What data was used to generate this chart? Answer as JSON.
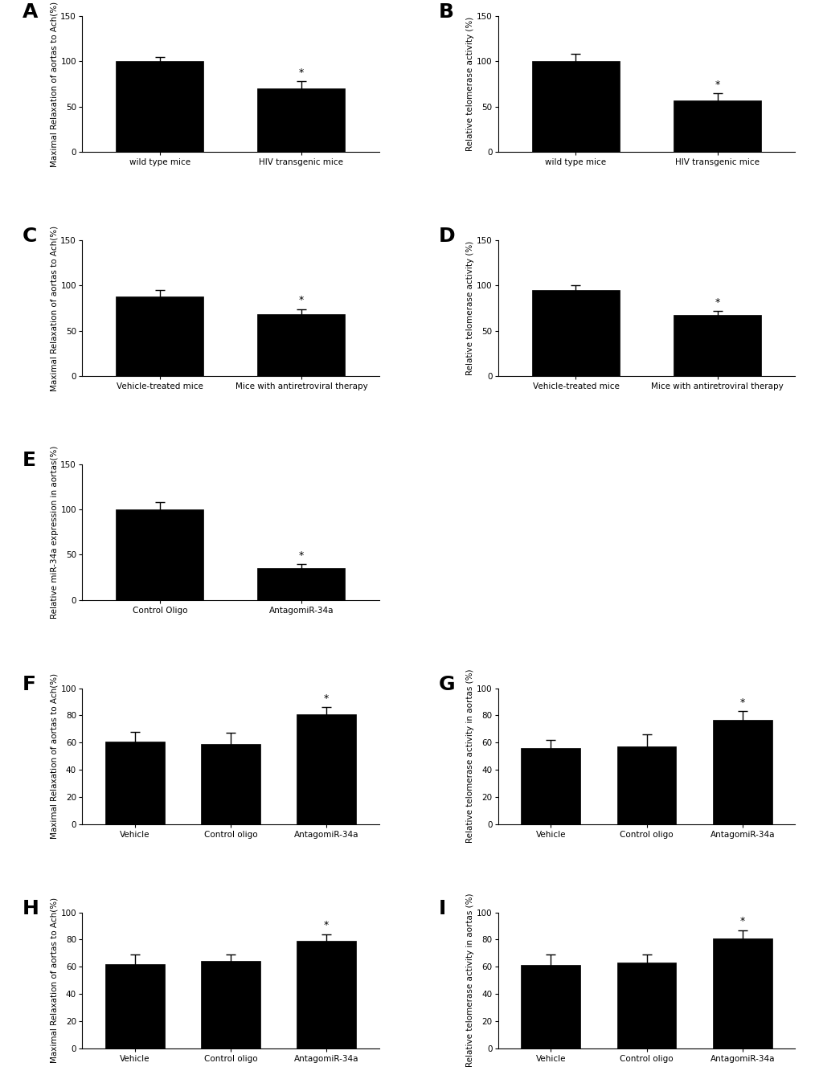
{
  "panels": {
    "A": {
      "categories": [
        "wild type mice",
        "HIV transgenic mice"
      ],
      "values": [
        100,
        70
      ],
      "errors": [
        5,
        8
      ],
      "ylabel": "Maximal Relaxation of aortas to Ach(%)",
      "ylim": [
        0,
        150
      ],
      "yticks": [
        0,
        50,
        100,
        150
      ],
      "sig": [
        false,
        true
      ]
    },
    "B": {
      "categories": [
        "wild type mice",
        "HIV transgenic mice"
      ],
      "values": [
        100,
        57
      ],
      "errors": [
        8,
        8
      ],
      "ylabel": "Relative telomerase activity (%)",
      "ylim": [
        0,
        150
      ],
      "yticks": [
        0,
        50,
        100,
        150
      ],
      "sig": [
        false,
        true
      ]
    },
    "C": {
      "categories": [
        "Vehicle-treated mice",
        "Mice with antiretroviral therapy"
      ],
      "values": [
        88,
        68
      ],
      "errors": [
        7,
        6
      ],
      "ylabel": "Maximal Relaxation of aortas to Ach(%)",
      "ylim": [
        0,
        150
      ],
      "yticks": [
        0,
        50,
        100,
        150
      ],
      "sig": [
        false,
        true
      ]
    },
    "D": {
      "categories": [
        "Vehicle-treated mice",
        "Mice with antiretroviral therapy"
      ],
      "values": [
        95,
        67
      ],
      "errors": [
        5,
        5
      ],
      "ylabel": "Relative telomerase activity (%)",
      "ylim": [
        0,
        150
      ],
      "yticks": [
        0,
        50,
        100,
        150
      ],
      "sig": [
        false,
        true
      ]
    },
    "E": {
      "categories": [
        "Control Oligo",
        "AntagomiR-34a"
      ],
      "values": [
        100,
        35
      ],
      "errors": [
        8,
        5
      ],
      "ylabel": "Relative miR-34a expression in aortas(%)",
      "ylim": [
        0,
        150
      ],
      "yticks": [
        0,
        50,
        100,
        150
      ],
      "sig": [
        false,
        true
      ]
    },
    "F": {
      "categories": [
        "Vehicle",
        "Control oligo",
        "AntagomiR-34a"
      ],
      "values": [
        61,
        59,
        81
      ],
      "errors": [
        7,
        8,
        5
      ],
      "ylabel": "Maximal Relaxation of aortas to Ach(%)",
      "ylim": [
        0,
        100
      ],
      "yticks": [
        0,
        20,
        40,
        60,
        80,
        100
      ],
      "sig": [
        false,
        false,
        true
      ]
    },
    "G": {
      "categories": [
        "Vehicle",
        "Control oligo",
        "AntagomiR-34a"
      ],
      "values": [
        56,
        57,
        77
      ],
      "errors": [
        6,
        9,
        6
      ],
      "ylabel": "Relative telomerase activity in aortas (%)",
      "ylim": [
        0,
        100
      ],
      "yticks": [
        0,
        20,
        40,
        60,
        80,
        100
      ],
      "sig": [
        false,
        false,
        true
      ]
    },
    "H": {
      "categories": [
        "Vehicle",
        "Control oligo",
        "AntagomiR-34a"
      ],
      "values": [
        62,
        64,
        79
      ],
      "errors": [
        7,
        5,
        5
      ],
      "ylabel": "Maximal Relaxation of aortas to Ach(%)",
      "ylim": [
        0,
        100
      ],
      "yticks": [
        0,
        20,
        40,
        60,
        80,
        100
      ],
      "sig": [
        false,
        false,
        true
      ]
    },
    "I": {
      "categories": [
        "Vehicle",
        "Control oligo",
        "AntagomiR-34a"
      ],
      "values": [
        61,
        63,
        81
      ],
      "errors": [
        8,
        6,
        6
      ],
      "ylabel": "Relative telomerase activity in aortas (%)",
      "ylim": [
        0,
        100
      ],
      "yticks": [
        0,
        20,
        40,
        60,
        80,
        100
      ],
      "sig": [
        false,
        false,
        true
      ]
    }
  },
  "bar_color": "#000000",
  "bar_edge_color": "#000000",
  "background_color": "#ffffff",
  "ylabel_fontsize": 7.5,
  "tick_fontsize": 7.5,
  "xlabel_fontsize": 7.5,
  "panel_label_fontsize": 18,
  "sig_marker": "*",
  "sig_fontsize": 9
}
